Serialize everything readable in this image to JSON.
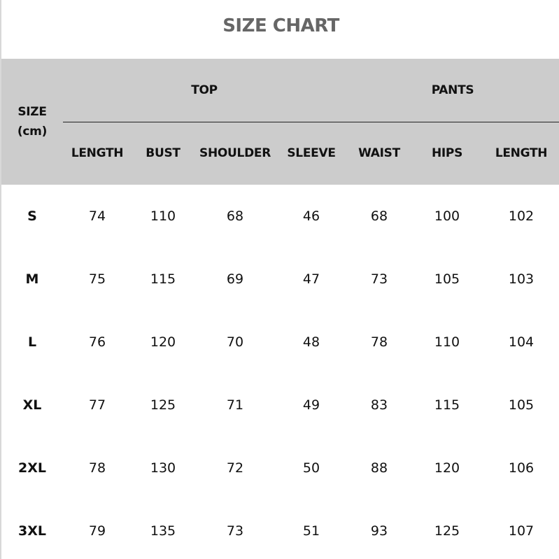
{
  "title": "SIZE CHART",
  "header": {
    "size_label": "SIZE",
    "unit_label": "(cm)",
    "groups": [
      "TOP",
      "PANTS"
    ],
    "columns": [
      "LENGTH",
      "BUST",
      "SHOULDER",
      "SLEEVE",
      "WAIST",
      "HIPS",
      "LENGTH"
    ]
  },
  "rows": [
    {
      "size": "S",
      "values": [
        "74",
        "110",
        "68",
        "46",
        "68",
        "100",
        "102"
      ]
    },
    {
      "size": "M",
      "values": [
        "75",
        "115",
        "69",
        "47",
        "73",
        "105",
        "103"
      ]
    },
    {
      "size": "L",
      "values": [
        "76",
        "120",
        "70",
        "48",
        "78",
        "110",
        "104"
      ]
    },
    {
      "size": "XL",
      "values": [
        "77",
        "125",
        "71",
        "49",
        "83",
        "115",
        "105"
      ]
    },
    {
      "size": "2XL",
      "values": [
        "78",
        "130",
        "72",
        "50",
        "88",
        "120",
        "106"
      ]
    },
    {
      "size": "3XL",
      "values": [
        "79",
        "135",
        "73",
        "51",
        "93",
        "125",
        "107"
      ]
    }
  ],
  "colors": {
    "header_bg": "#cccccc",
    "title": "#666666"
  }
}
